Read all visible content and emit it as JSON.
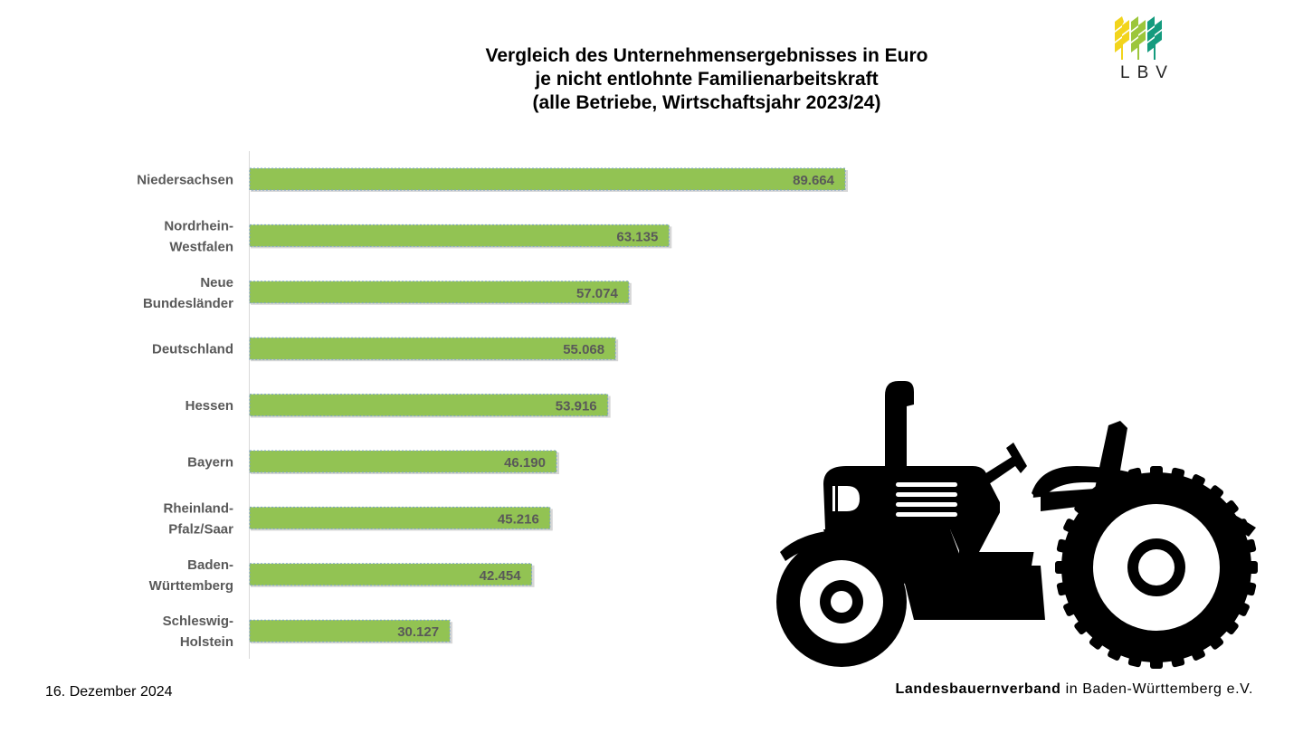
{
  "chart_data": {
    "type": "bar",
    "orientation": "horizontal",
    "title": [
      "Vergleich des Unternehmensergebnisses in Euro",
      "je nicht entlohnte Familienarbeitskraft",
      "(alle Betriebe, Wirtschaftsjahr 2023/24)"
    ],
    "categories": [
      [
        "Niedersachsen"
      ],
      [
        "Nordrhein-",
        "Westfalen"
      ],
      [
        "Neue",
        "Bundesländer"
      ],
      [
        "Deutschland"
      ],
      [
        "Hessen"
      ],
      [
        "Bayern"
      ],
      [
        "Rheinland-",
        "Pfalz/Saar"
      ],
      [
        "Baden-",
        "Württemberg"
      ],
      [
        "Schleswig-",
        "Holstein"
      ]
    ],
    "values": [
      89664,
      63135,
      57074,
      55068,
      53916,
      46190,
      45216,
      42454,
      30127
    ],
    "value_labels": [
      "89.664",
      "63.135",
      "57.074",
      "55.068",
      "53.916",
      "46.190",
      "45.216",
      "42.454",
      "30.127"
    ],
    "xlim": [
      0,
      100000
    ],
    "grid": false,
    "bar_color": "#92C353",
    "label_color": "#595959"
  },
  "logo": {
    "text": "LBV"
  },
  "footer": {
    "date": "16. Dezember 2024",
    "org_bold": "Landesbauernverband",
    "org_rest": " in Baden-Württemberg e.V."
  },
  "colors": {
    "accent_yellow": "#F2D41C",
    "accent_green": "#9CC63B",
    "accent_teal": "#149B7E"
  },
  "illustration": {
    "icon": "tractor-icon"
  }
}
